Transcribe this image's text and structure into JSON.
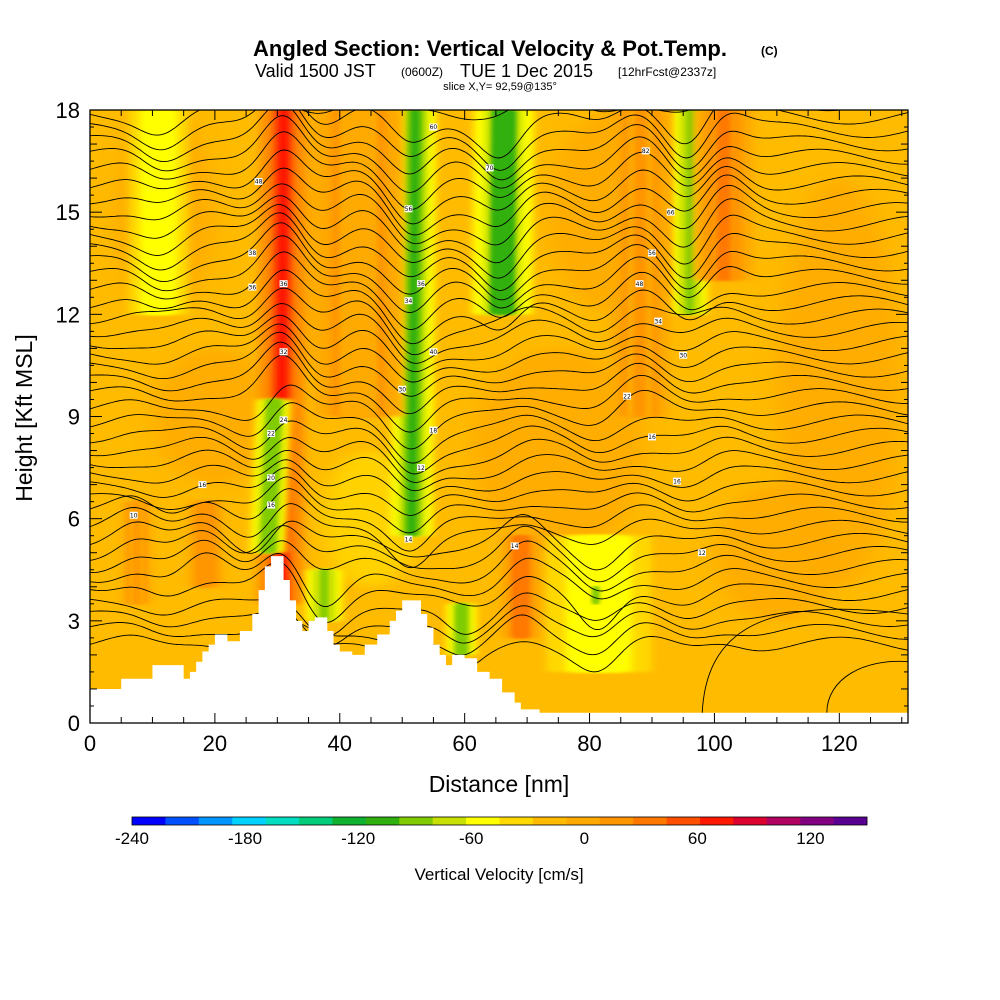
{
  "title": {
    "main": "Angled Section: Vertical Velocity & Pot.Temp.",
    "main_units": "(C)",
    "valid_prefix": "Valid 1500 JST",
    "valid_zulu": "(0600Z)",
    "valid_date": "TUE 1 Dec 2015",
    "forecast": "[12hrFcst@2337z]",
    "slice": "slice X,Y= 92,59@135°"
  },
  "chart_data": {
    "type": "heatmap",
    "xlabel": "Distance [nm]",
    "ylabel": "Height [Kft MSL]",
    "xlim": [
      0,
      131
    ],
    "ylim": [
      0,
      18
    ],
    "x_ticks": [
      "0",
      "20",
      "40",
      "60",
      "80",
      "100",
      "120"
    ],
    "x_tick_values": [
      0,
      20,
      40,
      60,
      80,
      100,
      120
    ],
    "y_ticks": [
      "0",
      "3",
      "6",
      "9",
      "12",
      "15",
      "18"
    ],
    "y_tick_values": [
      0,
      3,
      6,
      9,
      12,
      15,
      18
    ],
    "colorbar": {
      "title": "Vertical Velocity [cm/s]",
      "min": -240,
      "max": 150,
      "step": 20,
      "labels": [
        "-240",
        "-180",
        "-120",
        "-60",
        "0",
        "60",
        "120"
      ],
      "label_values": [
        -240,
        -180,
        -120,
        -60,
        0,
        60,
        120
      ],
      "colors": [
        "#0000ff",
        "#0050ff",
        "#0096ff",
        "#00d2ff",
        "#00ddc0",
        "#00cc7a",
        "#10b030",
        "#30b010",
        "#80cc00",
        "#c8e000",
        "#ffff00",
        "#ffd800",
        "#ffbb00",
        "#ffaa00",
        "#ff9500",
        "#ff7800",
        "#ff4f00",
        "#ff1800",
        "#dc0030",
        "#b00060",
        "#800080",
        "#5a0090"
      ]
    },
    "terrain_profile": {
      "x": [
        0,
        5,
        5,
        10,
        10,
        15,
        15,
        16,
        16,
        17,
        17,
        18,
        18,
        19,
        19,
        20,
        20,
        22,
        22,
        24,
        24,
        26,
        26,
        27,
        27,
        28,
        28,
        29,
        29,
        31,
        31,
        32,
        32,
        33,
        33,
        34,
        34,
        35,
        35,
        36,
        36,
        38,
        38,
        39,
        39,
        40,
        40,
        42,
        42,
        44,
        44,
        46,
        46,
        48,
        48,
        49,
        49,
        50,
        50,
        51,
        51,
        53,
        53,
        54,
        54,
        55,
        55,
        56,
        56,
        57,
        57,
        58,
        58,
        60,
        60,
        62,
        62,
        64,
        64,
        66,
        66,
        68,
        68,
        69,
        69,
        70,
        70,
        72,
        72,
        75,
        75,
        131
      ],
      "y": [
        1.0,
        1.0,
        1.3,
        1.3,
        1.7,
        1.7,
        1.3,
        1.3,
        1.5,
        1.5,
        1.8,
        1.8,
        2.1,
        2.1,
        2.3,
        2.3,
        2.6,
        2.6,
        2.4,
        2.4,
        2.7,
        2.7,
        3.2,
        3.2,
        3.9,
        3.9,
        4.6,
        4.6,
        4.9,
        4.9,
        4.2,
        4.2,
        3.6,
        3.6,
        3.0,
        3.0,
        2.7,
        2.7,
        3.0,
        3.0,
        3.1,
        3.1,
        2.7,
        2.7,
        2.3,
        2.3,
        2.1,
        2.1,
        2.0,
        2.0,
        2.3,
        2.3,
        2.6,
        2.6,
        3.0,
        3.0,
        3.3,
        3.3,
        3.6,
        3.6,
        3.6,
        3.6,
        3.2,
        3.2,
        2.8,
        2.8,
        2.3,
        2.3,
        2.0,
        2.0,
        1.7,
        1.7,
        2.0,
        2.0,
        1.9,
        1.9,
        1.5,
        1.5,
        1.3,
        1.3,
        0.9,
        0.9,
        0.6,
        0.6,
        0.4,
        0.4,
        0.4,
        0.4,
        0.3,
        0.3,
        0.3,
        0.3
      ]
    },
    "vertical_velocity_features": [
      {
        "x": 30.5,
        "y_bottom": 3.5,
        "y_top": 18.0,
        "value": 110,
        "width": 1.6,
        "lean": 0.5
      },
      {
        "x": 28.5,
        "y_bottom": 5.0,
        "y_top": 9.5,
        "value": -80,
        "width": 1.2,
        "lean": 1.0
      },
      {
        "x": 51.5,
        "y_bottom": 5.5,
        "y_top": 18.0,
        "value": -90,
        "width": 1.4,
        "lean": 0.6
      },
      {
        "x": 66.0,
        "y_bottom": 12.0,
        "y_top": 18.0,
        "value": -100,
        "width": 2.0,
        "lean": 0.3
      },
      {
        "x": 96.0,
        "y_bottom": 12.0,
        "y_top": 18.0,
        "value": -70,
        "width": 1.2,
        "lean": 0.2
      },
      {
        "x": 101.5,
        "y_bottom": 13.0,
        "y_top": 18.0,
        "value": 60,
        "width": 2.0,
        "lean": 0
      },
      {
        "x": 69.0,
        "y_bottom": 2.5,
        "y_top": 5.5,
        "value": 70,
        "width": 1.4,
        "lean": 0
      },
      {
        "x": 18.5,
        "y_bottom": 4.0,
        "y_top": 6.5,
        "value": 55,
        "width": 1.2,
        "lean": 0
      },
      {
        "x": 7.5,
        "y_bottom": 3.5,
        "y_top": 6.5,
        "value": 40,
        "width": 1.0,
        "lean": 0
      },
      {
        "x": 81.5,
        "y_bottom": 1.5,
        "y_top": 5.5,
        "value": -40,
        "width": 3.5,
        "lean": 0
      },
      {
        "x": 81.0,
        "y_bottom": 3.5,
        "y_top": 4.0,
        "value": -80,
        "width": 0.5,
        "lean": 0
      },
      {
        "x": 59.5,
        "y_bottom": 2.0,
        "y_top": 3.5,
        "value": -80,
        "width": 1.0,
        "lean": 0
      },
      {
        "x": 37.5,
        "y_bottom": 3.0,
        "y_top": 4.5,
        "value": -70,
        "width": 1.2,
        "lean": 0
      },
      {
        "x": 88.0,
        "y_bottom": 9.0,
        "y_top": 18.0,
        "value": 40,
        "width": 2.0,
        "lean": 0.2
      },
      {
        "x": 43.0,
        "y_bottom": 9.0,
        "y_top": 18.0,
        "value": 30,
        "width": 3.0,
        "lean": 0
      },
      {
        "x": 11.0,
        "y_bottom": 12.0,
        "y_top": 18.0,
        "value": -40,
        "width": 2.0,
        "lean": 0
      }
    ],
    "pot_temp_contours": {
      "units": "C",
      "labels": [
        {
          "x": 7,
          "y": 6.1,
          "text": "10"
        },
        {
          "x": 18,
          "y": 7.0,
          "text": "16"
        },
        {
          "x": 29,
          "y": 8.5,
          "text": "22"
        },
        {
          "x": 29,
          "y": 7.2,
          "text": "20"
        },
        {
          "x": 29,
          "y": 6.4,
          "text": "16"
        },
        {
          "x": 31,
          "y": 8.9,
          "text": "24"
        },
        {
          "x": 31,
          "y": 10.9,
          "text": "32"
        },
        {
          "x": 31,
          "y": 12.9,
          "text": "36"
        },
        {
          "x": 26,
          "y": 13.8,
          "text": "38"
        },
        {
          "x": 26,
          "y": 12.8,
          "text": "36"
        },
        {
          "x": 27,
          "y": 15.9,
          "text": "48"
        },
        {
          "x": 51,
          "y": 15.1,
          "text": "56"
        },
        {
          "x": 51,
          "y": 12.4,
          "text": "34"
        },
        {
          "x": 53,
          "y": 12.9,
          "text": "36"
        },
        {
          "x": 55,
          "y": 10.9,
          "text": "40"
        },
        {
          "x": 50,
          "y": 9.8,
          "text": "30"
        },
        {
          "x": 55,
          "y": 8.6,
          "text": "18"
        },
        {
          "x": 53,
          "y": 7.5,
          "text": "12"
        },
        {
          "x": 51,
          "y": 5.4,
          "text": "14"
        },
        {
          "x": 55,
          "y": 17.5,
          "text": "60"
        },
        {
          "x": 64,
          "y": 16.3,
          "text": "70"
        },
        {
          "x": 68,
          "y": 5.2,
          "text": "14"
        },
        {
          "x": 89,
          "y": 16.8,
          "text": "82"
        },
        {
          "x": 93,
          "y": 15.0,
          "text": "66"
        },
        {
          "x": 90,
          "y": 13.8,
          "text": "56"
        },
        {
          "x": 88,
          "y": 12.9,
          "text": "48"
        },
        {
          "x": 91,
          "y": 11.8,
          "text": "34"
        },
        {
          "x": 95,
          "y": 10.8,
          "text": "30"
        },
        {
          "x": 86,
          "y": 9.6,
          "text": "22"
        },
        {
          "x": 90,
          "y": 8.4,
          "text": "16"
        },
        {
          "x": 94,
          "y": 7.1,
          "text": "16"
        },
        {
          "x": 98,
          "y": 5.0,
          "text": "12"
        }
      ]
    }
  }
}
